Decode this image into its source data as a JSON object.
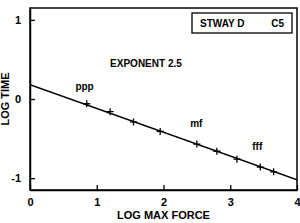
{
  "chart_data": {
    "type": "scatter",
    "title": "STWAY D",
    "subtitle": "C5",
    "x_label": "LOG MAX FORCE",
    "y_label": "LOG TIME",
    "xlim": [
      0,
      4
    ],
    "xticks": [
      0,
      1,
      2,
      3,
      4
    ],
    "ylim": [
      -1.15,
      1.15
    ],
    "yticks": [
      -1,
      0,
      1
    ],
    "grid": false,
    "series": [
      {
        "type": "scatter",
        "marker": "plus",
        "color": "#000000",
        "x": [
          0.85,
          1.2,
          1.55,
          1.95,
          2.5,
          2.8,
          3.1,
          3.45,
          3.65
        ],
        "values": [
          -0.06,
          -0.16,
          -0.29,
          -0.41,
          -0.57,
          -0.66,
          -0.76,
          -0.86,
          -0.92
        ]
      },
      {
        "type": "line",
        "line_style": "solid",
        "color": "#000000",
        "x": [
          0,
          4
        ],
        "values": [
          0.18,
          -1.02
        ]
      }
    ],
    "annotations": [
      {
        "text": "EXPONENT 2.5",
        "x": 1.2,
        "y": 0.4
      },
      {
        "text": "ppp",
        "x": 0.68,
        "y": 0.12
      },
      {
        "text": "mf",
        "x": 2.4,
        "y": -0.36
      },
      {
        "text": "fff",
        "x": 3.33,
        "y": -0.64
      }
    ]
  }
}
